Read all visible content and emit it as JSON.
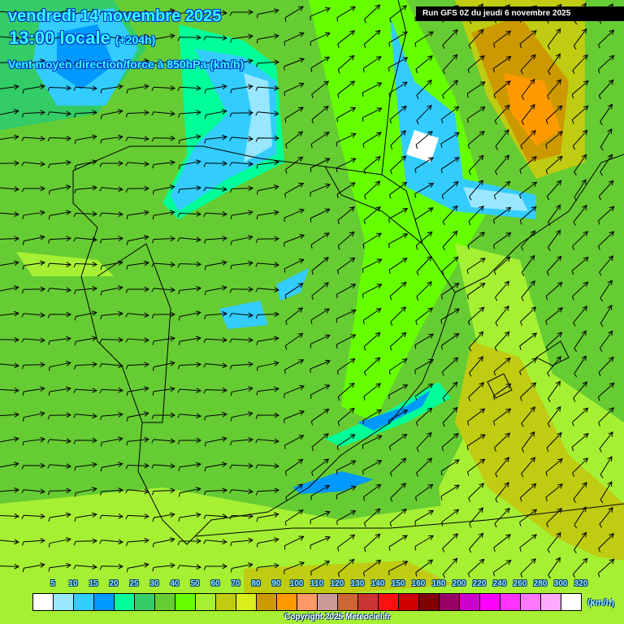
{
  "header": {
    "date": "vendredi 14 novembre 2025",
    "time": "13:00 locale",
    "lead": "(+204h)",
    "parameter": "Vent moyen direction/force à 850hPa (km/h)",
    "run": "Run GFS 0Z du jeudi 6 novembre 2025"
  },
  "legend": {
    "labels": [
      "5",
      "10",
      "15",
      "20",
      "25",
      "30",
      "40",
      "50",
      "60",
      "70",
      "80",
      "90",
      "100",
      "110",
      "120",
      "130",
      "140",
      "150",
      "160",
      "180",
      "200",
      "220",
      "240",
      "260",
      "280",
      "300",
      "320"
    ],
    "colors": [
      "#ffffff",
      "#99e6ff",
      "#33ccff",
      "#0099ff",
      "#00ff99",
      "#33cc66",
      "#66cc33",
      "#66ff00",
      "#a6f034",
      "#bfcc11",
      "#d9ee1a",
      "#cc9900",
      "#ff9900",
      "#ff9966",
      "#cc9999",
      "#cc6633",
      "#cc3333",
      "#ff1010",
      "#cc0000",
      "#800000",
      "#990066",
      "#cc00cc",
      "#ff00ff",
      "#ff33ff",
      "#ff77ff",
      "#ffaaff",
      "#ffffff"
    ],
    "unit": "(km/h)"
  },
  "copyright": "Copyright 2025 Meteociel.fr"
}
